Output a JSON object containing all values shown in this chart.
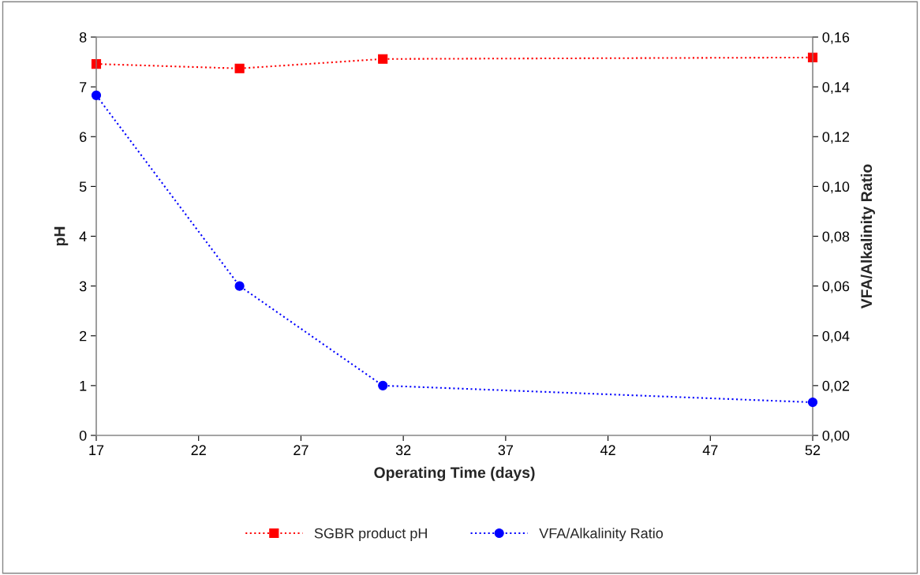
{
  "chart_data": {
    "type": "line",
    "xlabel": "Operating Time (days)",
    "ylabel": "pH",
    "y2label": "VFA/Alkalinity Ratio",
    "x": [
      17,
      24,
      31,
      52
    ],
    "series": [
      {
        "name": "SGBR product pH",
        "color": "#ff0000",
        "values": [
          7.46,
          7.37,
          7.56,
          7.59
        ],
        "marker": "square",
        "line_style": "dotted"
      },
      {
        "name": "VFA/Alkalinity Ratio",
        "color": "#0000ff",
        "values": [
          0.1366,
          0.06,
          0.02,
          0.0133
        ],
        "marker": "circle",
        "line_style": "dotted",
        "axis": "y2"
      }
    ],
    "xlim": [
      17,
      52
    ],
    "xticks": [
      17,
      22,
      27,
      32,
      37,
      42,
      47,
      52
    ],
    "ylim": [
      0,
      8
    ],
    "yticks": [
      0,
      1,
      2,
      3,
      4,
      5,
      6,
      7,
      8
    ],
    "y2lim": [
      0,
      0.16
    ],
    "y2ticks": [
      {
        "value": 0,
        "label": "0,00"
      },
      {
        "value": 0.02,
        "label": "0,02"
      },
      {
        "value": 0.04,
        "label": "0,04"
      },
      {
        "value": 0.06,
        "label": "0,06"
      },
      {
        "value": 0.08,
        "label": "0,08"
      },
      {
        "value": 0.1,
        "label": "0,10"
      },
      {
        "value": 0.12,
        "label": "0,12"
      },
      {
        "value": 0.14,
        "label": "0,14"
      },
      {
        "value": 0.16,
        "label": "0,16"
      }
    ],
    "grid": false,
    "legend": "bottom"
  }
}
